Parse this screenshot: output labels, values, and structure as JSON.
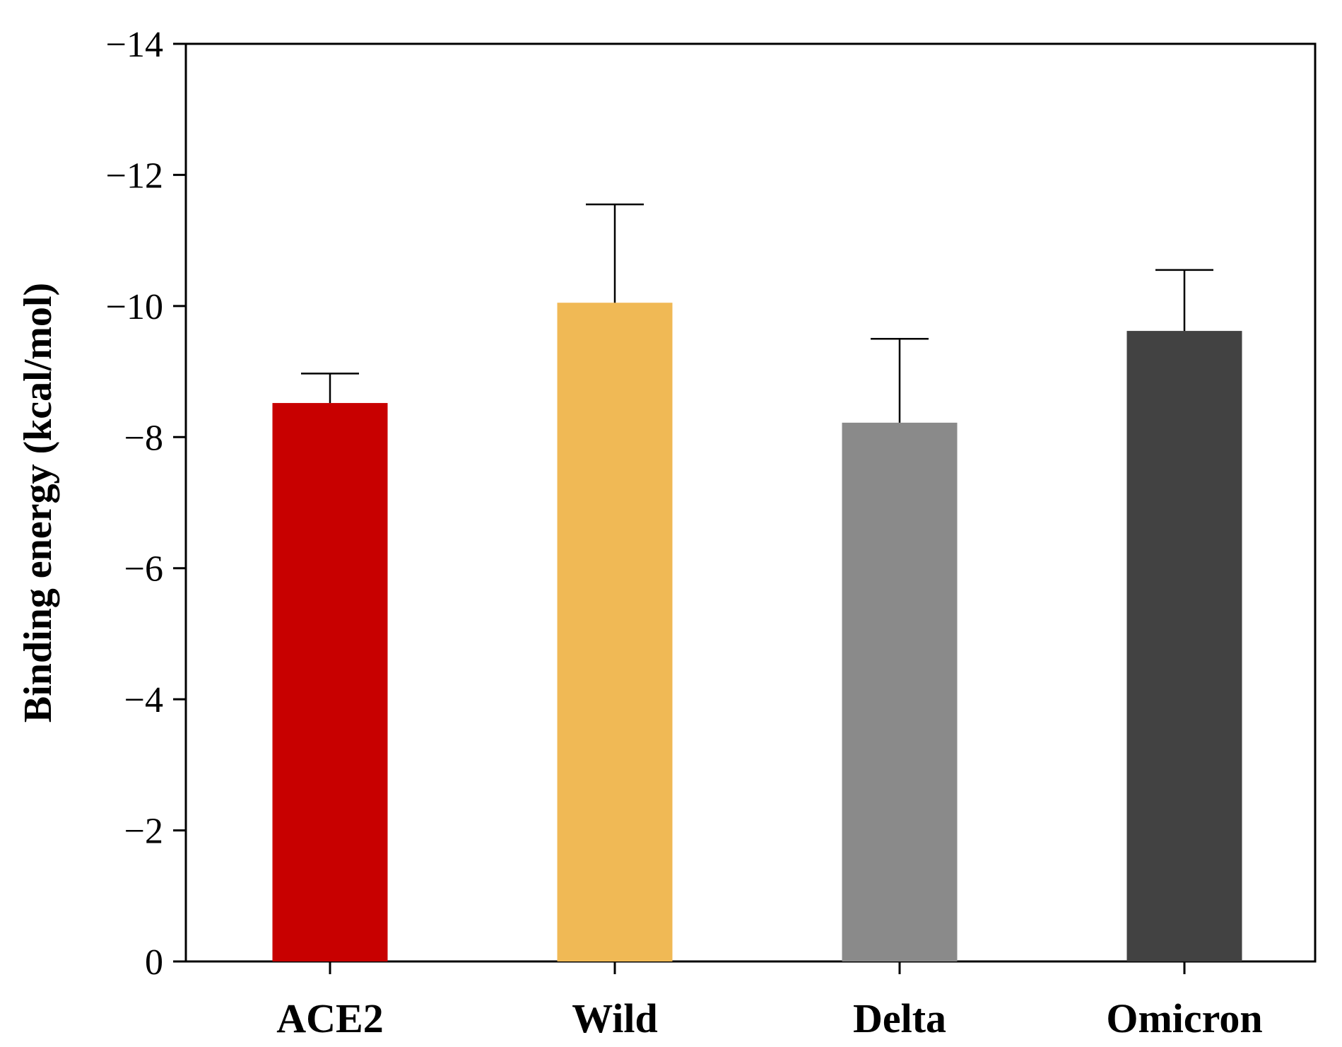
{
  "chart_data": {
    "type": "bar",
    "title": "",
    "xlabel": "",
    "ylabel": "Binding energy (kcal/mol)",
    "ylim": [
      0,
      -14
    ],
    "yticks": [
      0,
      -2,
      -4,
      -6,
      -8,
      -10,
      -12,
      -14
    ],
    "ytick_labels": [
      "0",
      "−2",
      "−4",
      "−6",
      "−8",
      "−10",
      "−12",
      "−14"
    ],
    "categories": [
      "ACE2",
      "Wild",
      "Delta",
      "Omicron"
    ],
    "values": [
      -8.52,
      -10.05,
      -8.22,
      -9.62
    ],
    "errors": [
      0.45,
      1.5,
      1.28,
      0.93
    ],
    "colors": [
      "#c80000",
      "#f0b955",
      "#8a8a8a",
      "#424242"
    ],
    "grid": false,
    "legend": "none"
  }
}
